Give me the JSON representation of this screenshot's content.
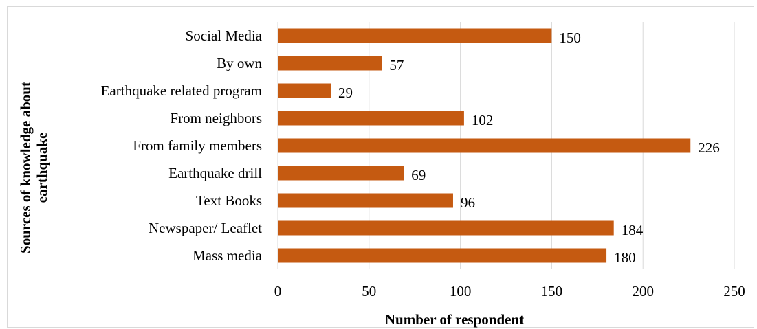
{
  "chart_data": {
    "type": "bar",
    "orientation": "horizontal",
    "categories": [
      "Social Media",
      "By own",
      "Earthquake related program",
      "From neighbors ",
      "From family members",
      "Earthquake drill",
      "Text Books",
      "Newspaper/ Leaflet",
      "Mass media "
    ],
    "values": [
      150,
      57,
      29,
      102,
      226,
      69,
      96,
      184,
      180
    ],
    "value_labels": [
      "150",
      "57",
      "29",
      "102",
      "226",
      "69",
      "96",
      "184",
      "180"
    ],
    "xlabel": "Number of respondent",
    "ylabel_lines": [
      "Sources of knowledge about",
      "earthquake"
    ],
    "xlim": [
      0,
      250
    ],
    "xticks": [
      0,
      50,
      100,
      150,
      200,
      250
    ],
    "xtick_labels": [
      "0",
      "50",
      "100",
      "150",
      "200",
      "250"
    ],
    "gridlines": "vertical",
    "legend": "none",
    "bar_color": "#c55a11",
    "grid_color": "#d9d9d9"
  }
}
